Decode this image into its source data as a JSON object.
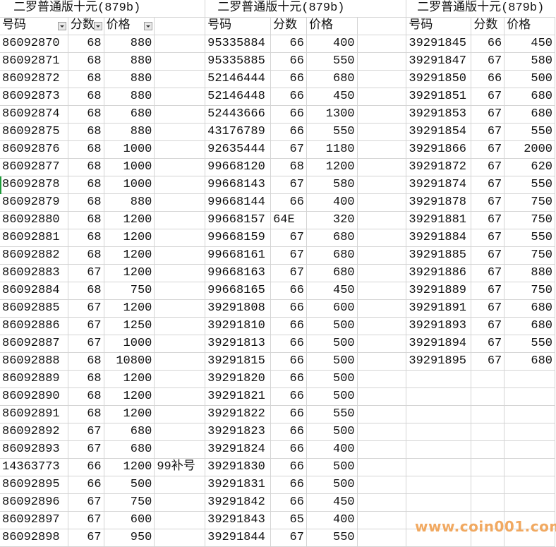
{
  "sheet": {
    "group_title": "二罗普通版十元(879b)",
    "headers": [
      "号码",
      "分数",
      "价格"
    ],
    "groups": [
      {
        "title": "二罗普通版十元(879b)",
        "has_filters": true,
        "rows": [
          [
            "86092870",
            "68",
            "880"
          ],
          [
            "86092871",
            "68",
            "880"
          ],
          [
            "86092872",
            "68",
            "880"
          ],
          [
            "86092873",
            "68",
            "880"
          ],
          [
            "86092874",
            "68",
            "680"
          ],
          [
            "86092875",
            "68",
            "880"
          ],
          [
            "86092876",
            "68",
            "1000"
          ],
          [
            "86092877",
            "68",
            "1000"
          ],
          [
            "86092878",
            "68",
            "1000"
          ],
          [
            "86092879",
            "68",
            "880"
          ],
          [
            "86092880",
            "68",
            "1200"
          ],
          [
            "86092881",
            "68",
            "1200"
          ],
          [
            "86092882",
            "68",
            "1200"
          ],
          [
            "86092883",
            "67",
            "1200"
          ],
          [
            "86092884",
            "68",
            "750"
          ],
          [
            "86092885",
            "67",
            "1200"
          ],
          [
            "86092886",
            "67",
            "1250"
          ],
          [
            "86092887",
            "67",
            "1000"
          ],
          [
            "86092888",
            "68",
            "10800"
          ],
          [
            "86092889",
            "68",
            "1200"
          ],
          [
            "86092890",
            "68",
            "1200"
          ],
          [
            "86092891",
            "68",
            "1200"
          ],
          [
            "86092892",
            "67",
            "680"
          ],
          [
            "86092893",
            "67",
            "680"
          ],
          [
            "14363773",
            "66",
            "1200",
            "99补号"
          ],
          [
            "86092895",
            "66",
            "500"
          ],
          [
            "86092896",
            "67",
            "750"
          ],
          [
            "86092897",
            "67",
            "600"
          ],
          [
            "86092898",
            "67",
            "950"
          ]
        ]
      },
      {
        "title": "二罗普通版十元(879b)",
        "has_filters": false,
        "rows": [
          [
            "95335884",
            "66",
            "400"
          ],
          [
            "95335885",
            "66",
            "550"
          ],
          [
            "52146444",
            "66",
            "680"
          ],
          [
            "52146448",
            "66",
            "450"
          ],
          [
            "52443666",
            "66",
            "1300"
          ],
          [
            "43176789",
            "66",
            "550"
          ],
          [
            "92635444",
            "67",
            "1180"
          ],
          [
            "99668120",
            "68",
            "1200"
          ],
          [
            "99668143",
            "67",
            "580"
          ],
          [
            "99668144",
            "66",
            "400"
          ],
          [
            "99668157",
            "64E",
            "320"
          ],
          [
            "99668159",
            "67",
            "680"
          ],
          [
            "99668161",
            "67",
            "680"
          ],
          [
            "99668163",
            "67",
            "680"
          ],
          [
            "99668165",
            "66",
            "450"
          ],
          [
            "39291808",
            "66",
            "600"
          ],
          [
            "39291810",
            "66",
            "500"
          ],
          [
            "39291813",
            "66",
            "500"
          ],
          [
            "39291815",
            "66",
            "500"
          ],
          [
            "39291820",
            "66",
            "500"
          ],
          [
            "39291821",
            "66",
            "500"
          ],
          [
            "39291822",
            "66",
            "550"
          ],
          [
            "39291823",
            "66",
            "500"
          ],
          [
            "39291824",
            "66",
            "400"
          ],
          [
            "39291830",
            "66",
            "500"
          ],
          [
            "39291831",
            "66",
            "500"
          ],
          [
            "39291842",
            "66",
            "450"
          ],
          [
            "39291843",
            "65",
            "400"
          ],
          [
            "39291844",
            "67",
            "550"
          ]
        ]
      },
      {
        "title": "二罗普通版十元(879b)",
        "has_filters": false,
        "rows": [
          [
            "39291845",
            "66",
            "450"
          ],
          [
            "39291847",
            "67",
            "580"
          ],
          [
            "39291850",
            "66",
            "500"
          ],
          [
            "39291851",
            "67",
            "680"
          ],
          [
            "39291853",
            "67",
            "680"
          ],
          [
            "39291854",
            "67",
            "550"
          ],
          [
            "39291866",
            "67",
            "2000"
          ],
          [
            "39291872",
            "67",
            "620"
          ],
          [
            "39291874",
            "67",
            "550"
          ],
          [
            "39291878",
            "67",
            "750"
          ],
          [
            "39291881",
            "67",
            "750"
          ],
          [
            "39291884",
            "67",
            "550"
          ],
          [
            "39291885",
            "67",
            "750"
          ],
          [
            "39291886",
            "67",
            "880"
          ],
          [
            "39291889",
            "67",
            "750"
          ],
          [
            "39291891",
            "67",
            "680"
          ],
          [
            "39291893",
            "67",
            "680"
          ],
          [
            "39291894",
            "67",
            "550"
          ],
          [
            "39291895",
            "67",
            "680"
          ]
        ]
      }
    ]
  },
  "watermark": "www.coin001.com",
  "colors": {
    "grid": "#d4d4d4",
    "selection": "#1e9c3a",
    "watermark": "#f0a050"
  }
}
